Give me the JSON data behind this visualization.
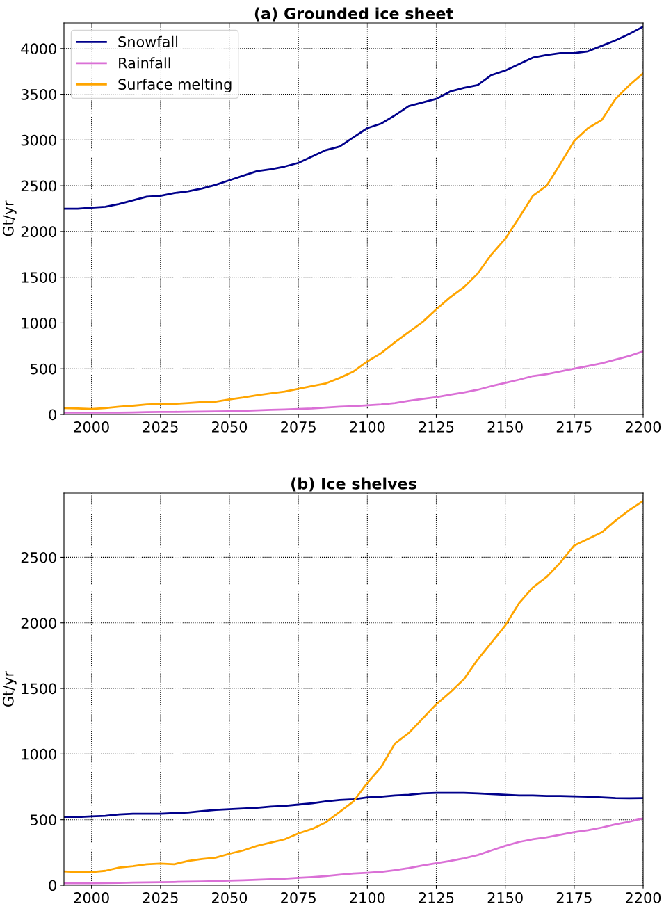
{
  "chart_data": [
    {
      "type": "line",
      "title": "(a) Grounded ice sheet",
      "ylabel": "Gt/yr",
      "x": [
        1990,
        1995,
        2000,
        2005,
        2010,
        2015,
        2020,
        2025,
        2030,
        2035,
        2040,
        2045,
        2050,
        2055,
        2060,
        2065,
        2070,
        2075,
        2080,
        2085,
        2090,
        2095,
        2100,
        2105,
        2110,
        2115,
        2120,
        2125,
        2130,
        2135,
        2140,
        2145,
        2150,
        2155,
        2160,
        2165,
        2170,
        2175,
        2180,
        2185,
        2190,
        2195,
        2200
      ],
      "series": [
        {
          "name": "Snowfall",
          "color": "#00008b",
          "values": [
            2250,
            2250,
            2260,
            2270,
            2300,
            2340,
            2380,
            2390,
            2420,
            2440,
            2470,
            2510,
            2560,
            2610,
            2660,
            2680,
            2710,
            2750,
            2820,
            2890,
            2930,
            3030,
            3130,
            3180,
            3270,
            3370,
            3410,
            3450,
            3530,
            3570,
            3600,
            3710,
            3760,
            3830,
            3900,
            3930,
            3950,
            3950,
            3970,
            4030,
            4090,
            4160,
            4240
          ]
        },
        {
          "name": "Rainfall",
          "color": "#da70d6",
          "values": [
            20,
            20,
            20,
            20,
            20,
            22,
            25,
            27,
            28,
            30,
            32,
            33,
            35,
            40,
            45,
            50,
            55,
            60,
            65,
            75,
            85,
            90,
            100,
            110,
            125,
            150,
            170,
            190,
            215,
            240,
            270,
            310,
            345,
            380,
            420,
            440,
            470,
            500,
            530,
            560,
            600,
            640,
            690
          ]
        },
        {
          "name": "Surface melting",
          "color": "#ffa500",
          "values": [
            70,
            65,
            60,
            70,
            85,
            95,
            110,
            115,
            115,
            125,
            135,
            140,
            165,
            185,
            210,
            230,
            250,
            280,
            310,
            340,
            400,
            470,
            580,
            670,
            790,
            900,
            1010,
            1150,
            1280,
            1390,
            1540,
            1750,
            1920,
            2150,
            2390,
            2500,
            2740,
            2990,
            3130,
            3220,
            3450,
            3600,
            3730
          ]
        }
      ],
      "xlim": [
        1990,
        2200
      ],
      "xticks": [
        2000,
        2025,
        2050,
        2075,
        2100,
        2125,
        2150,
        2175,
        2200
      ],
      "ylim": [
        0,
        4280
      ],
      "yticks": [
        0,
        500,
        1000,
        1500,
        2000,
        2500,
        3000,
        3500,
        4000
      ],
      "grid": true,
      "legend": "top left"
    },
    {
      "type": "line",
      "title": "(b) Ice shelves",
      "ylabel": "Gt/yr",
      "x": [
        1990,
        1995,
        2000,
        2005,
        2010,
        2015,
        2020,
        2025,
        2030,
        2035,
        2040,
        2045,
        2050,
        2055,
        2060,
        2065,
        2070,
        2075,
        2080,
        2085,
        2090,
        2095,
        2100,
        2105,
        2110,
        2115,
        2120,
        2125,
        2130,
        2135,
        2140,
        2145,
        2150,
        2155,
        2160,
        2165,
        2170,
        2175,
        2180,
        2185,
        2190,
        2195,
        2200
      ],
      "series": [
        {
          "color": "#00008b",
          "values": [
            520,
            520,
            525,
            530,
            540,
            545,
            545,
            545,
            550,
            555,
            565,
            575,
            580,
            585,
            590,
            600,
            605,
            615,
            625,
            640,
            650,
            655,
            670,
            675,
            685,
            690,
            700,
            705,
            705,
            705,
            700,
            695,
            690,
            685,
            685,
            680,
            680,
            678,
            675,
            670,
            665,
            663,
            665
          ]
        },
        {
          "color": "#da70d6",
          "values": [
            15,
            15,
            15,
            16,
            18,
            20,
            22,
            23,
            25,
            27,
            28,
            31,
            35,
            38,
            42,
            46,
            50,
            56,
            62,
            70,
            80,
            90,
            95,
            102,
            115,
            130,
            150,
            168,
            185,
            205,
            230,
            265,
            300,
            330,
            350,
            365,
            385,
            405,
            420,
            440,
            465,
            485,
            510
          ]
        },
        {
          "color": "#ffa500",
          "values": [
            105,
            100,
            100,
            110,
            135,
            145,
            160,
            165,
            160,
            185,
            200,
            210,
            240,
            265,
            300,
            325,
            350,
            395,
            430,
            480,
            560,
            640,
            780,
            900,
            1080,
            1160,
            1270,
            1380,
            1470,
            1570,
            1720,
            1850,
            1980,
            2150,
            2270,
            2350,
            2460,
            2590,
            2640,
            2690,
            2780,
            2860,
            2930
          ]
        }
      ],
      "xlim": [
        1990,
        2200
      ],
      "xticks": [
        2000,
        2025,
        2050,
        2075,
        2100,
        2125,
        2150,
        2175,
        2200
      ],
      "ylim": [
        0,
        2990
      ],
      "yticks": [
        0,
        500,
        1000,
        1500,
        2000,
        2500
      ],
      "grid": true
    }
  ]
}
